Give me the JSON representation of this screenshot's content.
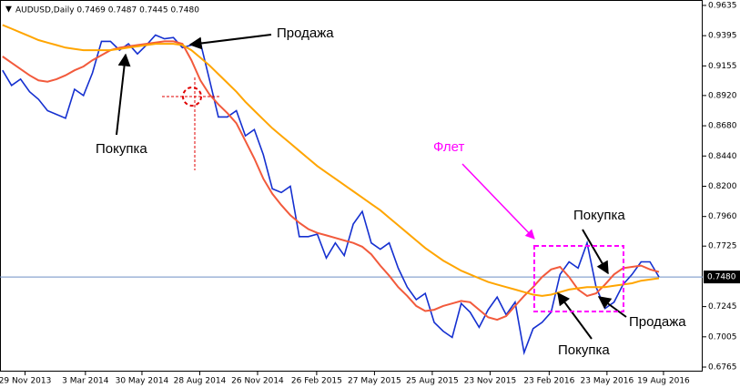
{
  "chart_data": {
    "type": "line",
    "header": "AUDUSD,Daily  0.7469 0.7487 0.7445 0.7480",
    "x": [
      "2013-10-25",
      "2013-11-08",
      "2013-11-22",
      "2013-12-06",
      "2013-12-20",
      "2014-01-03",
      "2014-01-17",
      "2014-01-31",
      "2014-02-14",
      "2014-02-28",
      "2014-03-14",
      "2014-03-28",
      "2014-04-11",
      "2014-04-25",
      "2014-05-09",
      "2014-05-23",
      "2014-06-06",
      "2014-06-20",
      "2014-07-04",
      "2014-07-18",
      "2014-08-01",
      "2014-08-15",
      "2014-08-29",
      "2014-09-12",
      "2014-09-26",
      "2014-10-10",
      "2014-10-24",
      "2014-11-07",
      "2014-11-21",
      "2014-12-05",
      "2014-12-19",
      "2015-01-02",
      "2015-01-16",
      "2015-01-30",
      "2015-02-13",
      "2015-02-27",
      "2015-03-13",
      "2015-03-27",
      "2015-04-10",
      "2015-04-24",
      "2015-05-08",
      "2015-05-22",
      "2015-06-05",
      "2015-06-19",
      "2015-07-03",
      "2015-07-17",
      "2015-07-31",
      "2015-08-14",
      "2015-08-28",
      "2015-09-11",
      "2015-09-25",
      "2015-10-09",
      "2015-10-23",
      "2015-11-06",
      "2015-11-20",
      "2015-12-04",
      "2015-12-18",
      "2016-01-01",
      "2016-01-15",
      "2016-01-29",
      "2016-02-12",
      "2016-02-26",
      "2016-03-11",
      "2016-03-25",
      "2016-04-08",
      "2016-04-22",
      "2016-05-06",
      "2016-05-20",
      "2016-06-03",
      "2016-06-17",
      "2016-07-01",
      "2016-07-15",
      "2016-07-29",
      "2016-08-12"
    ],
    "series": [
      {
        "color": "#1530d0",
        "values": [
          0.912,
          0.9,
          0.905,
          0.895,
          0.889,
          0.88,
          0.877,
          0.874,
          0.897,
          0.892,
          0.91,
          0.935,
          0.935,
          0.928,
          0.933,
          0.925,
          0.932,
          0.94,
          0.937,
          0.938,
          0.93,
          0.932,
          0.934,
          0.905,
          0.875,
          0.875,
          0.88,
          0.86,
          0.865,
          0.845,
          0.818,
          0.815,
          0.82,
          0.78,
          0.78,
          0.782,
          0.763,
          0.775,
          0.765,
          0.79,
          0.8,
          0.775,
          0.77,
          0.775,
          0.755,
          0.74,
          0.73,
          0.735,
          0.712,
          0.705,
          0.7,
          0.727,
          0.72,
          0.708,
          0.722,
          0.732,
          0.718,
          0.728,
          0.688,
          0.707,
          0.712,
          0.72,
          0.75,
          0.76,
          0.755,
          0.775,
          0.74,
          0.723,
          0.728,
          0.742,
          0.75,
          0.76,
          0.76,
          0.748
        ]
      },
      {
        "color": "#f25a3c",
        "values": [
          0.923,
          0.918,
          0.913,
          0.908,
          0.904,
          0.903,
          0.905,
          0.908,
          0.912,
          0.915,
          0.92,
          0.924,
          0.928,
          0.93,
          0.931,
          0.932,
          0.933,
          0.934,
          0.935,
          0.935,
          0.933,
          0.92,
          0.904,
          0.893,
          0.885,
          0.878,
          0.87,
          0.856,
          0.842,
          0.826,
          0.814,
          0.805,
          0.797,
          0.791,
          0.786,
          0.783,
          0.781,
          0.779,
          0.777,
          0.775,
          0.772,
          0.766,
          0.757,
          0.749,
          0.74,
          0.733,
          0.725,
          0.721,
          0.722,
          0.725,
          0.727,
          0.729,
          0.728,
          0.722,
          0.716,
          0.714,
          0.717,
          0.725,
          0.733,
          0.74,
          0.748,
          0.754,
          0.756,
          0.748,
          0.738,
          0.733,
          0.735,
          0.742,
          0.75,
          0.755,
          0.756,
          0.757,
          0.754,
          0.752
        ]
      },
      {
        "color": "#ffa500",
        "values": [
          0.948,
          0.945,
          0.942,
          0.939,
          0.936,
          0.934,
          0.932,
          0.93,
          0.929,
          0.928,
          0.928,
          0.928,
          0.928,
          0.929,
          0.93,
          0.931,
          0.932,
          0.933,
          0.933,
          0.933,
          0.932,
          0.928,
          0.922,
          0.916,
          0.909,
          0.902,
          0.895,
          0.887,
          0.88,
          0.873,
          0.866,
          0.86,
          0.854,
          0.848,
          0.842,
          0.836,
          0.831,
          0.826,
          0.821,
          0.816,
          0.811,
          0.806,
          0.801,
          0.795,
          0.789,
          0.783,
          0.777,
          0.771,
          0.766,
          0.761,
          0.757,
          0.753,
          0.75,
          0.747,
          0.744,
          0.742,
          0.74,
          0.738,
          0.736,
          0.734,
          0.733,
          0.734,
          0.736,
          0.738,
          0.739,
          0.74,
          0.74,
          0.74,
          0.741,
          0.742,
          0.743,
          0.745,
          0.746,
          0.747
        ]
      }
    ],
    "xlim": [
      "2013-10-21",
      "2016-10-19"
    ],
    "xticks": [
      {
        "value": "2013-11-29",
        "label": "29 Nov 2013"
      },
      {
        "value": "2014-03-03",
        "label": "3 Mar 2014"
      },
      {
        "value": "2014-05-30",
        "label": "30 May 2014"
      },
      {
        "value": "2014-08-28",
        "label": "28 Aug 2014"
      },
      {
        "value": "2014-11-26",
        "label": "26 Nov 2014"
      },
      {
        "value": "2015-02-26",
        "label": "26 Feb 2015"
      },
      {
        "value": "2015-05-27",
        "label": "27 May 2015"
      },
      {
        "value": "2015-08-25",
        "label": "25 Aug 2015"
      },
      {
        "value": "2015-11-23",
        "label": "23 Nov 2015"
      },
      {
        "value": "2016-02-23",
        "label": "23 Feb 2016"
      },
      {
        "value": "2016-05-23",
        "label": "23 May 2016"
      },
      {
        "value": "2016-08-19",
        "label": "19 Aug 2016"
      }
    ],
    "ylim": [
      0.6729,
      0.9678
    ],
    "yticks": [
      0.9635,
      0.9395,
      0.9155,
      {
        "value": 0.892,
        "label": "0.8920"
      },
      {
        "value": 0.868,
        "label": "0.8680"
      },
      {
        "value": 0.844,
        "label": "0.8440"
      },
      {
        "value": 0.82,
        "label": "0.8200"
      },
      {
        "value": 0.796,
        "label": "0.7960"
      },
      0.7725,
      0.7245,
      0.7005,
      0.6765
    ],
    "price_line": {
      "value": 0.748,
      "label": "0.7480"
    },
    "annotations": [
      "Продажа",
      "Покупка",
      "Флет",
      "Покупка",
      "Покупка",
      "Продажа"
    ]
  }
}
